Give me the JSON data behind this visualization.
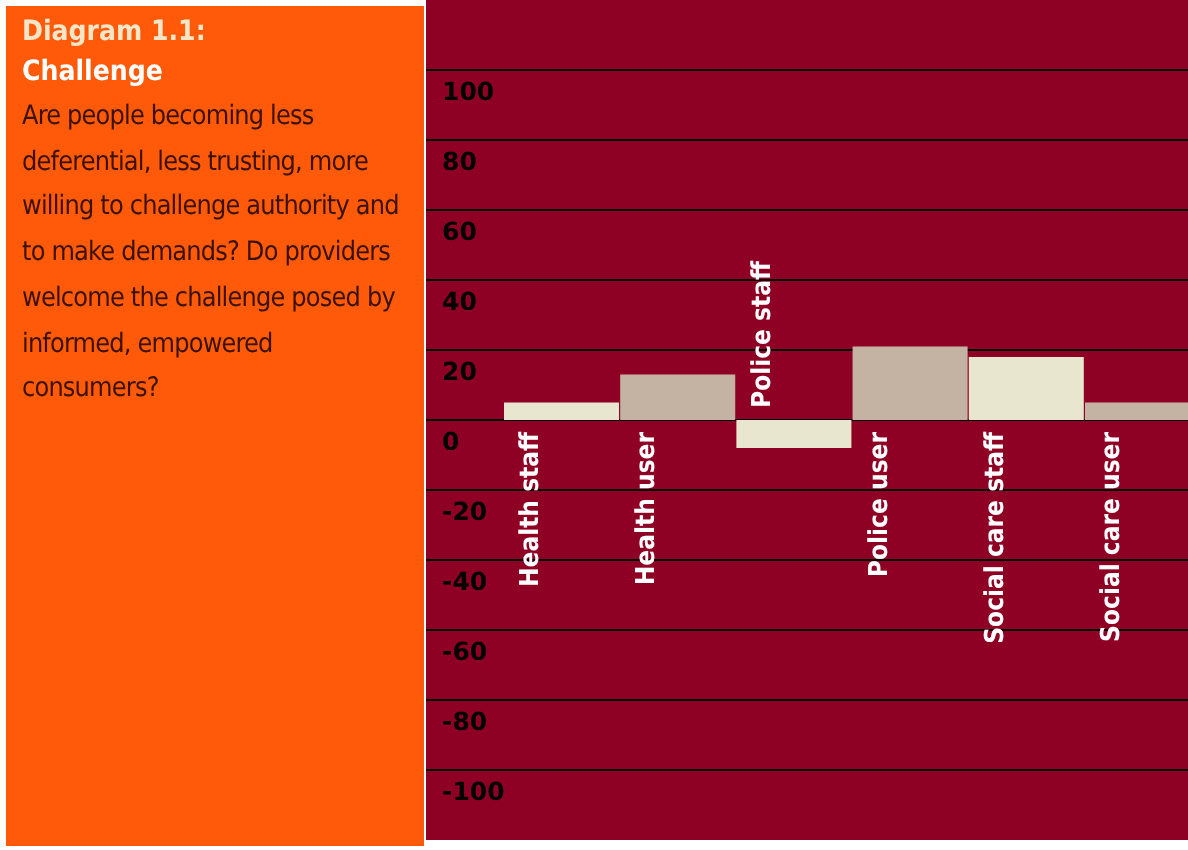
{
  "chart_data": {
    "type": "bar",
    "title": "Diagram 1.1:",
    "subtitle": "Challenge",
    "annotations": [
      "Are people becoming less deferential, less trusting, more willing to challenge authority and to make demands? Do providers welcome the challenge posed by informed, empowered consumers?"
    ],
    "categories": [
      "Health staff",
      "Health user",
      "Police staff",
      "Police user",
      "Social care staff",
      "Social care user"
    ],
    "values": [
      5,
      13,
      -8,
      21,
      18,
      5
    ],
    "colors": [
      "#e8e6cf",
      "#c4b3a2",
      "#e8e6cf",
      "#c4b3a2",
      "#e8e6cf",
      "#c4b3a2"
    ],
    "ylim": [
      -120,
      120
    ],
    "yticks": [
      -100,
      -80,
      -60,
      -40,
      -20,
      0,
      20,
      40,
      60,
      80,
      100
    ],
    "grid": "y"
  }
}
